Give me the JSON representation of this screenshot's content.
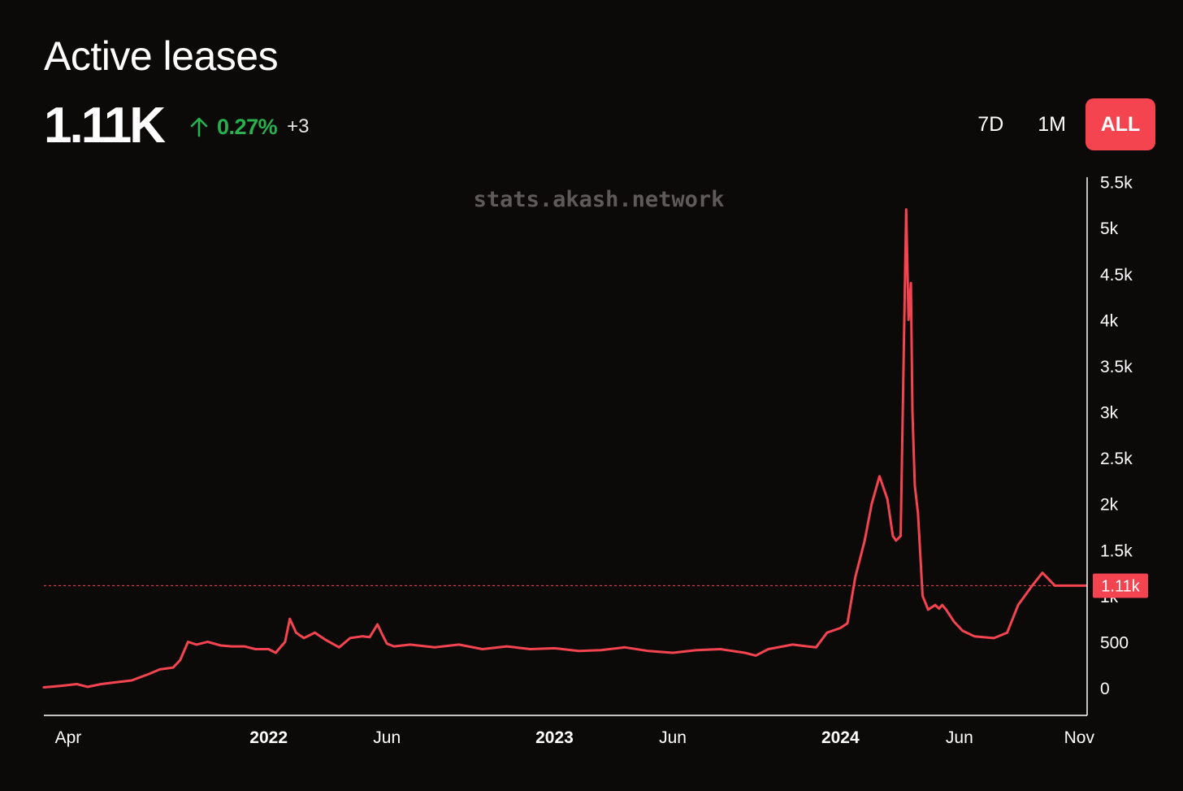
{
  "header": {
    "title": "Active leases",
    "value": "1.11K",
    "change_percent": "0.27%",
    "change_absolute": "+3"
  },
  "range_buttons": [
    {
      "label": "7D",
      "active": false
    },
    {
      "label": "1M",
      "active": false
    },
    {
      "label": "ALL",
      "active": true
    }
  ],
  "colors": {
    "background": "#0c0909",
    "line": "#f3444f",
    "positive": "#27b14f",
    "active_button": "#f3444f"
  },
  "chart_data": {
    "type": "line",
    "watermark": "stats.akash.network",
    "x_range": [
      "2021-03-20",
      "2024-11-10"
    ],
    "x_ticks": [
      {
        "date": "2021-04-01",
        "label": "Apr",
        "bold": false
      },
      {
        "date": "2022-01-01",
        "label": "2022",
        "bold": true
      },
      {
        "date": "2022-06-01",
        "label": "Jun",
        "bold": false
      },
      {
        "date": "2023-01-01",
        "label": "2023",
        "bold": true
      },
      {
        "date": "2023-06-01",
        "label": "Jun",
        "bold": false
      },
      {
        "date": "2024-01-01",
        "label": "2024",
        "bold": true
      },
      {
        "date": "2024-06-01",
        "label": "Jun",
        "bold": false
      },
      {
        "date": "2024-11-01",
        "label": "Nov",
        "bold": false
      }
    ],
    "y_ticks": [
      {
        "value": 0,
        "label": "0"
      },
      {
        "value": 500,
        "label": "500"
      },
      {
        "value": 1000,
        "label": "1k"
      },
      {
        "value": 1500,
        "label": "1.5k"
      },
      {
        "value": 2000,
        "label": "2k"
      },
      {
        "value": 2500,
        "label": "2.5k"
      },
      {
        "value": 3000,
        "label": "3k"
      },
      {
        "value": 3500,
        "label": "3.5k"
      },
      {
        "value": 4000,
        "label": "4k"
      },
      {
        "value": 4500,
        "label": "4.5k"
      },
      {
        "value": 5000,
        "label": "5k"
      },
      {
        "value": 5500,
        "label": "5.5k"
      }
    ],
    "ylim": [
      -300,
      5550
    ],
    "current_value": 1110,
    "current_label": "1.11k",
    "grid": false,
    "series": [
      {
        "x": [
          "2021-03-20",
          "2021-04-10",
          "2021-05-01",
          "2021-05-15",
          "2021-06-01",
          "2021-06-20",
          "2021-07-10",
          "2021-08-01",
          "2021-08-15",
          "2021-09-01",
          "2021-09-10",
          "2021-09-20",
          "2021-10-01",
          "2021-10-15",
          "2021-11-01",
          "2021-11-15",
          "2021-12-01",
          "2021-12-15",
          "2022-01-01",
          "2022-01-10",
          "2022-01-15",
          "2022-01-22",
          "2022-01-28",
          "2022-02-05",
          "2022-02-15",
          "2022-03-01",
          "2022-03-15",
          "2022-04-01",
          "2022-04-15",
          "2022-05-01",
          "2022-05-10",
          "2022-05-20",
          "2022-05-26",
          "2022-06-01",
          "2022-06-10",
          "2022-07-01",
          "2022-08-01",
          "2022-09-01",
          "2022-10-01",
          "2022-11-01",
          "2022-12-01",
          "2023-01-01",
          "2023-02-01",
          "2023-03-01",
          "2023-04-01",
          "2023-05-01",
          "2023-06-01",
          "2023-07-01",
          "2023-08-01",
          "2023-09-01",
          "2023-09-15",
          "2023-10-01",
          "2023-11-01",
          "2023-11-20",
          "2023-12-01",
          "2023-12-15",
          "2024-01-01",
          "2024-01-10",
          "2024-01-20",
          "2024-02-01",
          "2024-02-10",
          "2024-02-20",
          "2024-03-01",
          "2024-03-08",
          "2024-03-12",
          "2024-03-18",
          "2024-03-25",
          "2024-03-28",
          "2024-03-31",
          "2024-04-02",
          "2024-04-05",
          "2024-04-09",
          "2024-04-15",
          "2024-04-22",
          "2024-05-01",
          "2024-05-06",
          "2024-05-10",
          "2024-05-15",
          "2024-05-25",
          "2024-06-05",
          "2024-06-20",
          "2024-07-01",
          "2024-07-15",
          "2024-08-01",
          "2024-08-15",
          "2024-09-01",
          "2024-09-15",
          "2024-10-01",
          "2024-10-10",
          "2024-10-20",
          "2024-11-01",
          "2024-11-05",
          "2024-11-10"
        ],
        "y": [
          5,
          20,
          40,
          10,
          40,
          60,
          80,
          150,
          200,
          220,
          300,
          500,
          470,
          500,
          460,
          450,
          450,
          420,
          420,
          380,
          430,
          500,
          750,
          600,
          540,
          600,
          520,
          440,
          540,
          560,
          550,
          690,
          580,
          480,
          450,
          470,
          440,
          470,
          420,
          450,
          420,
          430,
          400,
          410,
          440,
          400,
          380,
          410,
          420,
          380,
          350,
          420,
          470,
          450,
          440,
          600,
          650,
          700,
          1200,
          1600,
          2000,
          2300,
          2050,
          1650,
          1600,
          1650,
          5200,
          4000,
          4400,
          3000,
          2200,
          1900,
          1000,
          850,
          900,
          860,
          900,
          850,
          720,
          620,
          560,
          550,
          540,
          600,
          900,
          1100,
          1250,
          1110,
          1110,
          1110,
          1110,
          1110,
          1110
        ]
      }
    ]
  }
}
